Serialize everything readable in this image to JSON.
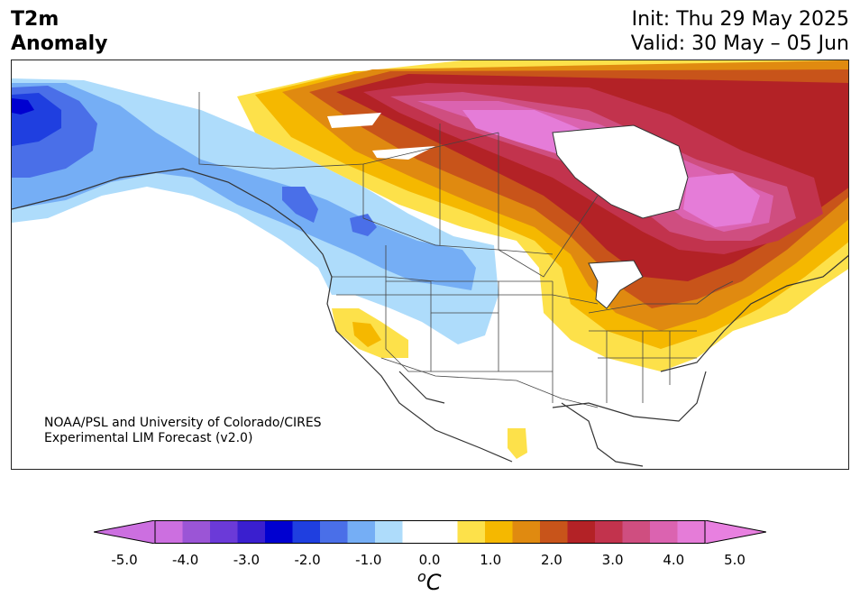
{
  "title": {
    "line1": "T2m",
    "line2": "Anomaly"
  },
  "dates": {
    "init": "Init: Thu 29 May 2025",
    "valid": "Valid: 30 May – 05 Jun"
  },
  "credit": {
    "line1": "NOAA/PSL and University of Colorado/CIRES",
    "line2": "Experimental LIM Forecast (v2.0)"
  },
  "colorbar": {
    "unit": "oC",
    "ticks": [
      "-5.0",
      "-4.0",
      "-3.0",
      "-2.0",
      "-1.0",
      "0.0",
      "1.0",
      "2.0",
      "3.0",
      "4.0",
      "5.0"
    ],
    "colors": [
      "#cc6fe0",
      "#9b55d6",
      "#6b3ad8",
      "#3a1fcf",
      "#0000d0",
      "#1f3fe0",
      "#4a6fe8",
      "#75aef5",
      "#aedcfb",
      "#ffffff",
      "#ffffff",
      "#fde14a",
      "#f5b800",
      "#e08a10",
      "#c8541a",
      "#b32226",
      "#c2334d",
      "#cf4e80",
      "#db63b0",
      "#e57cd8"
    ],
    "over_color": "#e880e0",
    "under_color": "#cc6fe0"
  },
  "map_data": {
    "variable": "T2m Anomaly",
    "units": "°C",
    "features": [
      {
        "region": "Alaska / Bering",
        "anomaly": -4.5
      },
      {
        "region": "Yukon / BC / Pacific NW",
        "anomaly": -1.5
      },
      {
        "region": "Nunavut / northern Canada",
        "anomaly": 4.5
      },
      {
        "region": "Quebec / Labrador",
        "anomaly": 5.0
      },
      {
        "region": "Great Lakes / Northeast US",
        "anomaly": 2.0
      },
      {
        "region": "Southern California / Nevada",
        "anomaly": 1.5
      },
      {
        "region": "Southern US / Mexico",
        "anomaly": 0.0
      }
    ]
  }
}
